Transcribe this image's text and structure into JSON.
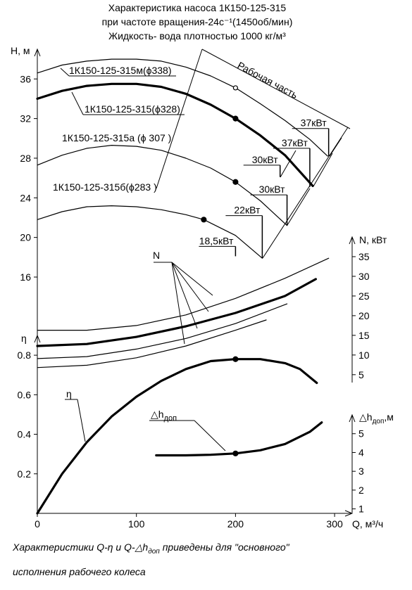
{
  "chart_data": [
    {
      "type": "line",
      "title": [
        "Характеристика насоса 1К150-125-315",
        "при частоте вращения-24с⁻¹(1450об/мин)",
        "Жидкость- вода плотностью 1000 кг/м³"
      ],
      "y_label": "H, м",
      "xlim": [
        0,
        317.7
      ],
      "ylim": [
        16,
        39
      ],
      "yticks": [
        16,
        20,
        24,
        28,
        32,
        36
      ],
      "series": [
        {
          "name": "1К150-125-315м(ϕ338)",
          "color": "#000",
          "width": 1.2,
          "x": [
            0,
            25,
            50,
            75,
            100,
            125,
            150,
            175,
            200,
            225,
            250,
            275,
            293
          ],
          "values": [
            36.6,
            37.4,
            37.8,
            38.0,
            38.0,
            37.8,
            37.2,
            36.3,
            35.1,
            33.5,
            31.8,
            29.9,
            28.2
          ]
        },
        {
          "name": "1К150-125-315(ϕ328)",
          "color": "#000",
          "width": 3.2,
          "x": [
            0,
            25,
            50,
            75,
            100,
            125,
            150,
            175,
            200,
            225,
            250,
            278
          ],
          "values": [
            34.0,
            34.8,
            35.3,
            35.5,
            35.5,
            35.2,
            34.5,
            33.4,
            32.0,
            30.3,
            28.3,
            25.2
          ]
        },
        {
          "name": "1К150-125-315а (ϕ 307 )",
          "color": "#000",
          "width": 1.2,
          "x": [
            0,
            25,
            50,
            75,
            100,
            125,
            150,
            175,
            200,
            225,
            252
          ],
          "values": [
            27.3,
            28.3,
            29.0,
            29.3,
            29.2,
            28.8,
            28.0,
            27.0,
            25.6,
            23.7,
            21.2
          ]
        },
        {
          "name": "1К150-125-315б(ϕ283 )",
          "color": "#000",
          "width": 1.2,
          "x": [
            0,
            25,
            50,
            75,
            100,
            125,
            150,
            168,
            200,
            227
          ],
          "values": [
            21.8,
            22.6,
            23.1,
            23.2,
            23.1,
            22.8,
            22.3,
            21.8,
            20.2,
            17.9
          ]
        }
      ],
      "points": [
        {
          "x": 200,
          "y": 35.1,
          "filled": false
        },
        {
          "x": 200,
          "y": 32.0,
          "filled": true
        },
        {
          "x": 200,
          "y": 25.6,
          "filled": true
        },
        {
          "x": 168,
          "y": 21.8,
          "filled": true
        }
      ],
      "annotations": [
        {
          "text": "18,5кВт",
          "x": 200,
          "y": [
            19.1,
            18.1
          ]
        },
        {
          "text": "22кВт",
          "x": 227,
          "y": [
            22.2,
            17.9
          ]
        },
        {
          "text": "30кВт",
          "x": 252,
          "y": [
            24.3,
            21.2
          ]
        },
        {
          "text": "30кВт",
          "x": 245,
          "y": [
            27.3,
            26.1
          ]
        },
        {
          "text": "37кВт",
          "x": 275,
          "y": [
            29.0,
            25.1
          ]
        },
        {
          "text": "37кВт",
          "x": 294,
          "y": [
            31.0,
            28.2
          ]
        }
      ],
      "region_label": "Рабочая часть"
    },
    {
      "type": "line",
      "y_label": "N, кВт",
      "label": "N",
      "xlim": [
        0,
        317.7
      ],
      "ylim": [
        3,
        40
      ],
      "yticks": [
        5,
        10,
        15,
        20,
        25,
        30,
        35
      ],
      "series": [
        {
          "color": "#000",
          "width": 1.2,
          "x": [
            0,
            50,
            100,
            150,
            200,
            250,
            294
          ],
          "values": [
            16.3,
            16.3,
            17.5,
            20.2,
            24.4,
            29.5,
            34.6
          ]
        },
        {
          "color": "#000",
          "width": 3.2,
          "x": [
            0,
            50,
            100,
            150,
            200,
            250,
            281
          ],
          "values": [
            12.3,
            12.8,
            14.6,
            17.3,
            20.7,
            25.0,
            29.3
          ]
        },
        {
          "color": "#000",
          "width": 1.2,
          "x": [
            0,
            50,
            100,
            150,
            200,
            252
          ],
          "values": [
            9.1,
            9.6,
            11.5,
            14.2,
            18.0,
            23.0
          ]
        },
        {
          "color": "#000",
          "width": 1.2,
          "x": [
            0,
            50,
            100,
            150,
            200,
            231
          ],
          "values": [
            6.8,
            7.4,
            9.3,
            12.3,
            16.3,
            18.9
          ]
        }
      ]
    },
    {
      "type": "line",
      "y_label": "η",
      "label": "η",
      "x_label": "Q, м³/ч",
      "xlim": [
        0,
        317.7
      ],
      "xticks": [
        0,
        100,
        200,
        300
      ],
      "ylim": [
        0,
        0.9
      ],
      "yticks": [
        0.2,
        0.4,
        0.6,
        0.8
      ],
      "series": [
        {
          "color": "#000",
          "width": 3.2,
          "x": [
            0,
            25,
            50,
            75,
            100,
            125,
            150,
            175,
            200,
            225,
            250,
            265,
            282
          ],
          "values": [
            0,
            0.2,
            0.36,
            0.49,
            0.59,
            0.67,
            0.73,
            0.77,
            0.78,
            0.78,
            0.76,
            0.73,
            0.66
          ]
        }
      ],
      "points": [
        {
          "x": 200,
          "y": 0.78,
          "filled": true
        }
      ],
      "note": [
        "Характеристики Q-η и Q-△h",
        "доп",
        " приведены для \"основного\"",
        "исполнения рабочего колеса"
      ]
    },
    {
      "type": "line",
      "y_label": "△h",
      "y_label_sub": "доп",
      "y_label_tail": ",м",
      "label": "△h",
      "label_sub": "доп",
      "xlim": [
        0,
        317.7
      ],
      "ylim": [
        0.8,
        6
      ],
      "yticks": [
        1,
        2,
        3,
        4,
        5
      ],
      "series": [
        {
          "color": "#000",
          "width": 3.2,
          "x": [
            120,
            150,
            175,
            200,
            225,
            250,
            275,
            287
          ],
          "values": [
            3.85,
            3.85,
            3.88,
            3.95,
            4.12,
            4.45,
            5.1,
            5.6
          ]
        }
      ],
      "points": [
        {
          "x": 200,
          "y": 3.95,
          "filled": true
        }
      ]
    }
  ]
}
